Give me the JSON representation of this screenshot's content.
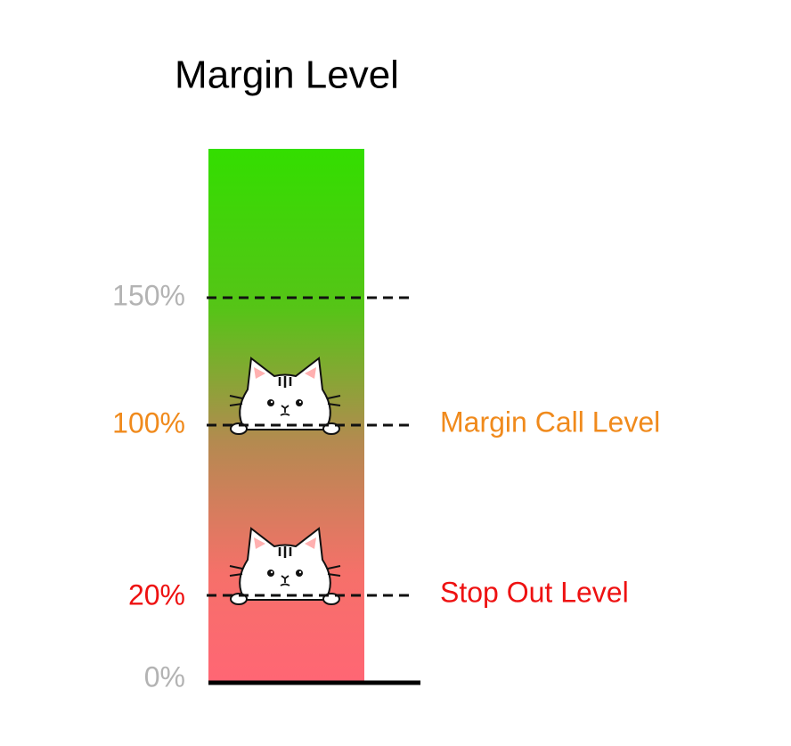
{
  "title": "Margin Level",
  "levels": [
    {
      "label": "150%"
    },
    {
      "label": "100%",
      "name": "Margin Call Level"
    },
    {
      "label": "20%",
      "name": "Stop Out Level"
    },
    {
      "label": "0%"
    }
  ]
}
